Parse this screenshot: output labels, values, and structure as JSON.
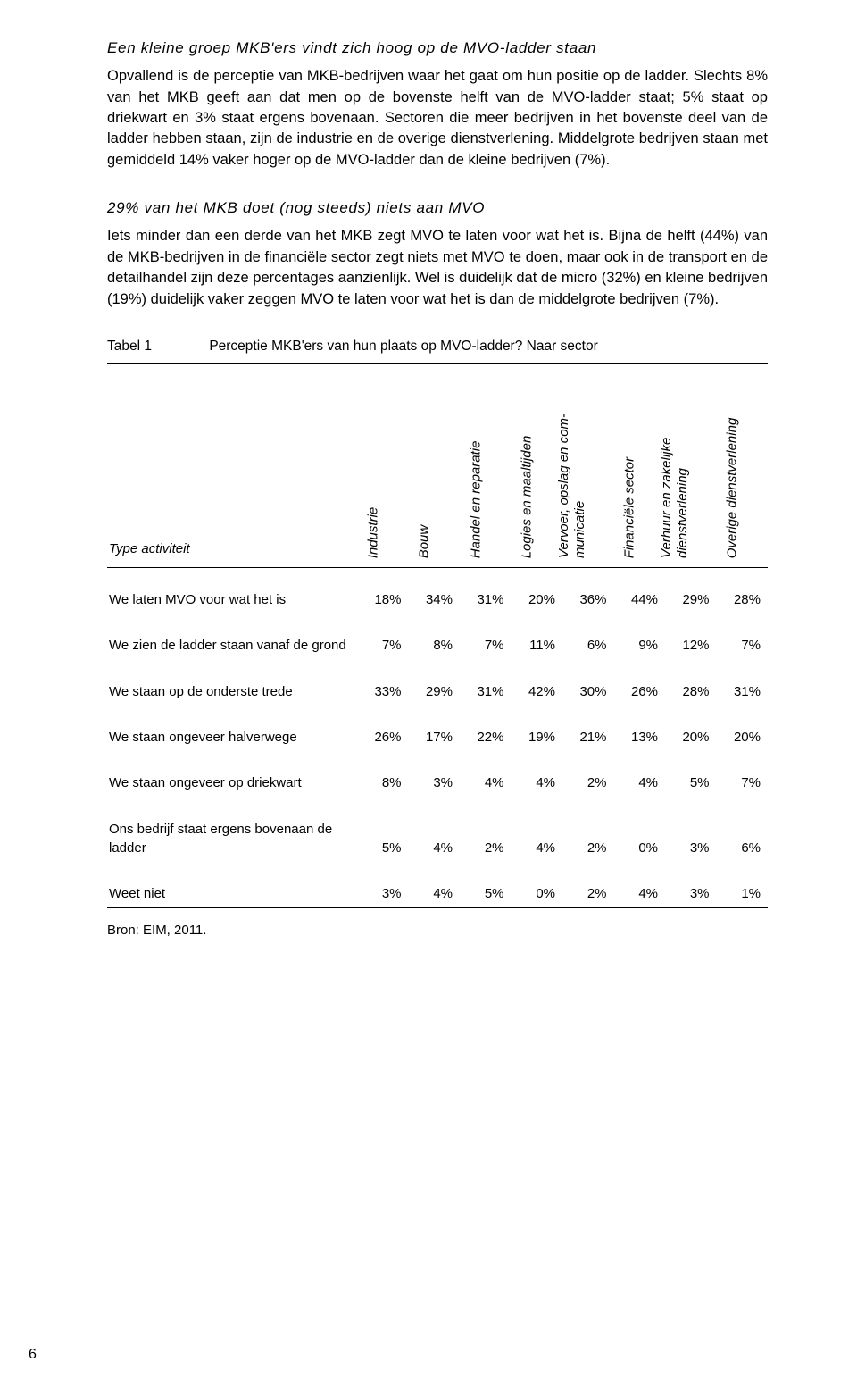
{
  "heading1": "Een kleine groep MKB'ers vindt zich hoog op de MVO-ladder staan",
  "para1": "Opvallend is de perceptie van MKB-bedrijven waar het gaat om hun positie op de ladder. Slechts 8% van het MKB geeft aan dat men op de bovenste helft van de MVO-ladder staat; 5% staat op driekwart en 3% staat ergens bovenaan. Sectoren die meer bedrijven in het bovenste deel van de ladder hebben staan, zijn de industrie en de overige dienstverlening. Middelgrote bedrijven staan met gemiddeld 14% vaker hoger op de MVO-ladder dan de kleine bedrijven (7%).",
  "heading2": "29% van het MKB doet (nog steeds) niets aan MVO",
  "para2": "Iets minder dan een derde van het MKB zegt MVO te laten voor wat het is. Bijna de helft (44%) van de MKB-bedrijven in de financiële sector zegt niets met MVO te doen, maar ook in de transport en de detailhandel zijn deze percentages aanzienlijk. Wel is duidelijk dat de micro (32%) en kleine bedrijven (19%) duidelijk vaker zeggen MVO te laten voor wat het is dan de middelgrote bedrijven (7%).",
  "table": {
    "label": "Tabel 1",
    "title": "Perceptie MKB'ers van hun plaats op MVO-ladder? Naar sector",
    "row_header": "Type activiteit",
    "columns": [
      "Industrie",
      "Bouw",
      "Handel en reparatie",
      "Logies en maaltijden",
      "Vervoer, opslag en communicatie",
      "Financiële sector",
      "Verhuur en zakelijke dienstverlening",
      "Overige dienstverlening"
    ],
    "rows": [
      {
        "label": "We laten MVO voor wat het is",
        "v": [
          "18%",
          "34%",
          "31%",
          "20%",
          "36%",
          "44%",
          "29%",
          "28%"
        ]
      },
      {
        "label": "We zien de ladder staan vanaf de grond",
        "v": [
          "7%",
          "8%",
          "7%",
          "11%",
          "6%",
          "9%",
          "12%",
          "7%"
        ]
      },
      {
        "label": "We staan op de onderste trede",
        "v": [
          "33%",
          "29%",
          "31%",
          "42%",
          "30%",
          "26%",
          "28%",
          "31%"
        ]
      },
      {
        "label": "We staan ongeveer halverwege",
        "v": [
          "26%",
          "17%",
          "22%",
          "19%",
          "21%",
          "13%",
          "20%",
          "20%"
        ]
      },
      {
        "label": "We staan ongeveer op driekwart",
        "v": [
          "8%",
          "3%",
          "4%",
          "4%",
          "2%",
          "4%",
          "5%",
          "7%"
        ]
      },
      {
        "label": "Ons bedrijf staat ergens bovenaan de ladder",
        "v": [
          "5%",
          "4%",
          "2%",
          "4%",
          "2%",
          "0%",
          "3%",
          "6%"
        ]
      },
      {
        "label": "Weet niet",
        "v": [
          "3%",
          "4%",
          "5%",
          "0%",
          "2%",
          "4%",
          "3%",
          "1%"
        ]
      }
    ],
    "source": "Bron: EIM, 2011."
  },
  "page_number": "6"
}
